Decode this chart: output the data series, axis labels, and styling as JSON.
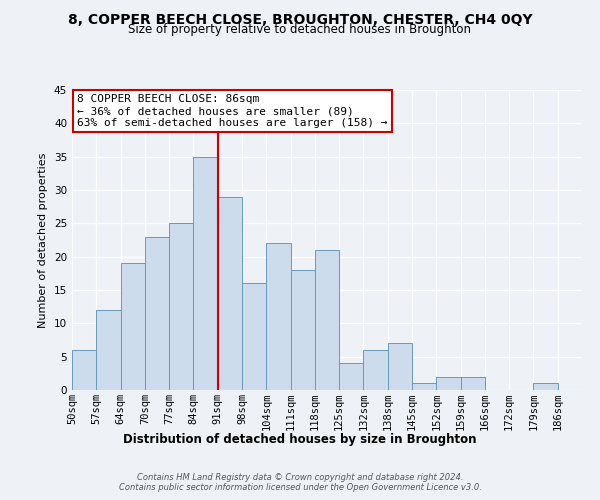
{
  "title": "8, COPPER BEECH CLOSE, BROUGHTON, CHESTER, CH4 0QY",
  "subtitle": "Size of property relative to detached houses in Broughton",
  "xlabel": "Distribution of detached houses by size in Broughton",
  "ylabel": "Number of detached properties",
  "bin_labels": [
    "50sqm",
    "57sqm",
    "64sqm",
    "70sqm",
    "77sqm",
    "84sqm",
    "91sqm",
    "98sqm",
    "104sqm",
    "111sqm",
    "118sqm",
    "125sqm",
    "132sqm",
    "138sqm",
    "145sqm",
    "152sqm",
    "159sqm",
    "166sqm",
    "172sqm",
    "179sqm",
    "186sqm"
  ],
  "bar_heights": [
    6,
    12,
    19,
    23,
    25,
    35,
    29,
    16,
    22,
    18,
    21,
    4,
    6,
    7,
    1,
    2,
    2,
    0,
    0,
    1,
    0
  ],
  "bar_color": "#ccdcec",
  "bar_edge_color": "#6699bb",
  "vline_x_index": 5,
  "vline_color": "#cc0000",
  "ylim": [
    0,
    45
  ],
  "yticks": [
    0,
    5,
    10,
    15,
    20,
    25,
    30,
    35,
    40,
    45
  ],
  "annotation_title": "8 COPPER BEECH CLOSE: 86sqm",
  "annotation_line1": "← 36% of detached houses are smaller (89)",
  "annotation_line2": "63% of semi-detached houses are larger (158) →",
  "annotation_box_color": "#ffffff",
  "annotation_box_edge": "#cc0000",
  "footer1": "Contains HM Land Registry data © Crown copyright and database right 2024.",
  "footer2": "Contains public sector information licensed under the Open Government Licence v3.0.",
  "bg_color": "#eef2f7",
  "grid_color": "#ffffff",
  "title_fontsize": 10,
  "subtitle_fontsize": 8.5,
  "ylabel_fontsize": 8,
  "xlabel_fontsize": 8.5,
  "tick_fontsize": 7.5,
  "annotation_fontsize": 8,
  "footer_fontsize": 6
}
